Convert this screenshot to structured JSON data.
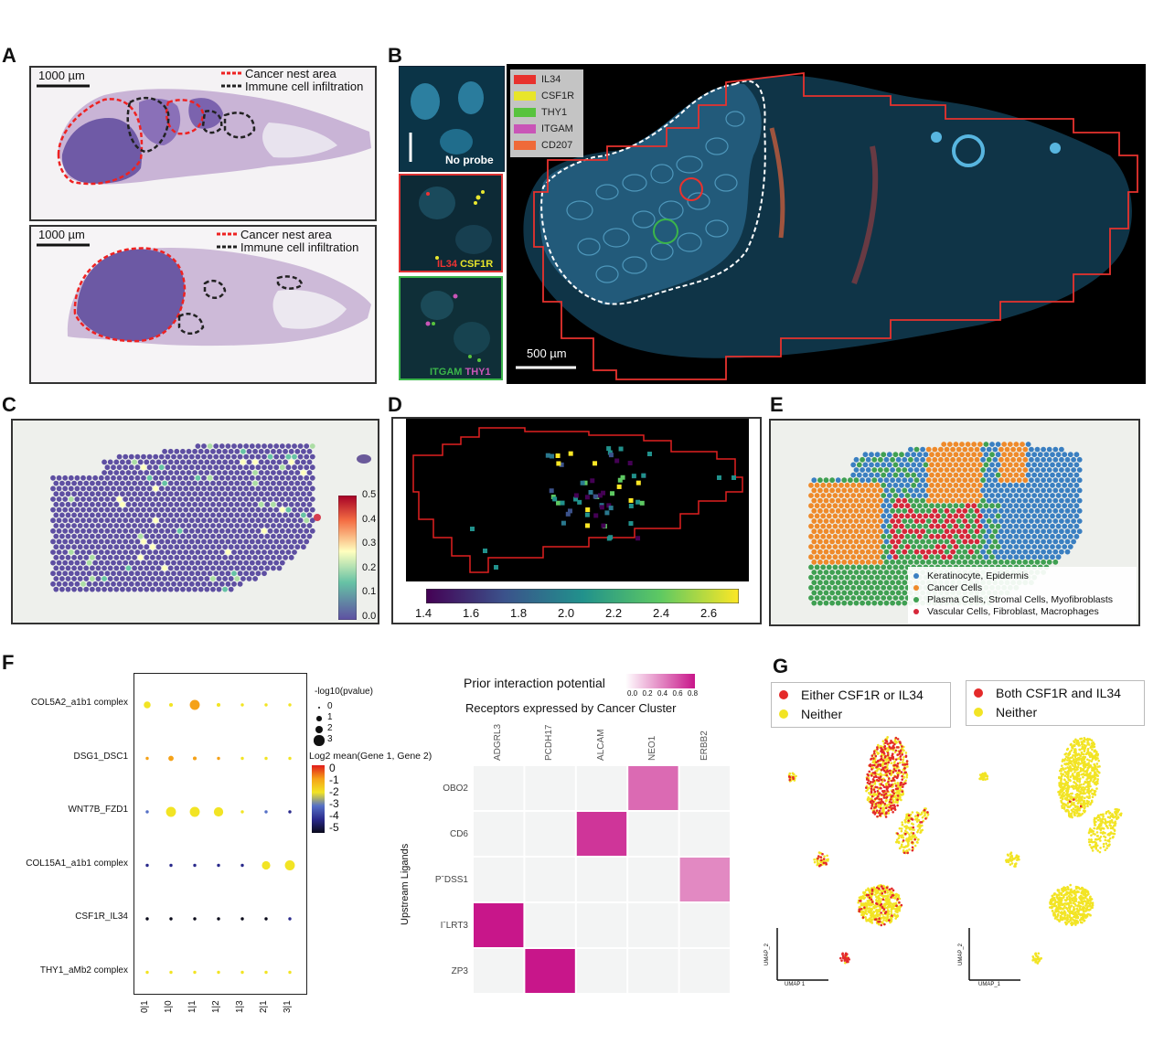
{
  "panels": {
    "A": "A",
    "B": "B",
    "C": "C",
    "D": "D",
    "E": "E",
    "F": "F",
    "G": "G"
  },
  "panelA": {
    "scale_top": "1000 µm",
    "scale_bottom": "1000 µm",
    "legend_cancer": "Cancer nest area",
    "legend_immune": "Immune cell infiltration"
  },
  "panelB": {
    "inset_noprobe": "No probe",
    "inset2_a": "IL34",
    "inset2_b": "CSF1R",
    "inset3_a": "ITGAM",
    "inset3_b": "THY1",
    "scale": "500 µm",
    "legend": [
      {
        "label": "IL34",
        "color": "#e8322e"
      },
      {
        "label": "CSF1R",
        "color": "#e8e52a"
      },
      {
        "label": "THY1",
        "color": "#58c33e"
      },
      {
        "label": "ITGAM",
        "color": "#c955b7"
      },
      {
        "label": "CD207",
        "color": "#ef6a39"
      }
    ]
  },
  "panelC": {
    "colorbar_ticks": [
      "0.5",
      "0.4",
      "0.3",
      "0.2",
      "0.1",
      "0.0"
    ]
  },
  "panelD": {
    "colorbar_ticks": [
      "1.4",
      "1.6",
      "1.8",
      "2.0",
      "2.2",
      "2.4",
      "2.6"
    ]
  },
  "panelE": {
    "legend": [
      {
        "label": "Keratinocyte, Epidermis",
        "color": "#3a7fc1"
      },
      {
        "label": "Cancer Cells",
        "color": "#ef8a2a"
      },
      {
        "label": "Plasma Cells, Stromal Cells, Myofibroblasts",
        "color": "#3fa052"
      },
      {
        "label": "Vascular Cells, Fibroblast, Macrophages",
        "color": "#d6273a"
      }
    ]
  },
  "panelF": {
    "rows": [
      "COL5A2_a1b1 complex",
      "DSG1_DSC1",
      "WNT7B_FZD1",
      "COL15A1_a1b1 complex",
      "CSF1R_IL34",
      "THY1_aMb2 complex"
    ],
    "cols": [
      "0|1",
      "1|0",
      "1|1",
      "1|2",
      "1|3",
      "2|1",
      "3|1"
    ],
    "size_legend_title": "-log10(pvalue)",
    "size_legend": [
      "0",
      "1",
      "2",
      "3"
    ],
    "color_legend_title": "Log2 mean(Gene 1, Gene 2)",
    "color_legend": [
      "0",
      "-1",
      "-2",
      "-3",
      "-4",
      "-5"
    ]
  },
  "heatmap": {
    "title": "Prior interaction potential",
    "scale_ticks": [
      "0.0",
      "0.2",
      "0.4",
      "0.6",
      "0.8"
    ],
    "subtitle": "Receptors expressed by Cancer Cluster",
    "receptors": [
      "ADGRL3",
      "PCDH17",
      "ALCAM",
      "NEO1",
      "ERBB2"
    ],
    "ligands": [
      "OBO2",
      "CD6",
      "PˉDSS1",
      "IˉLRT3",
      "ZP3"
    ],
    "ylabel": "Upstream Ligands"
  },
  "panelG": {
    "legend_left": [
      {
        "label": "Either CSF1R or IL34",
        "color": "#e42a2a"
      },
      {
        "label": "Neither",
        "color": "#f2e424"
      }
    ],
    "legend_right": [
      {
        "label": "Both CSF1R and IL34",
        "color": "#e42a2a"
      },
      {
        "label": "Neither",
        "color": "#f2e424"
      }
    ],
    "axis_x": "UMAP 1",
    "axis_y": "UMAP_2",
    "axis_x2": "UMAP_1",
    "axis_y2": "UMAP_2"
  },
  "chart_data": [
    {
      "type": "scatter",
      "title": "",
      "xlabel": "",
      "ylabel": "",
      "x": [
        "0|1",
        "1|0",
        "1|1",
        "1|2",
        "1|3",
        "2|1",
        "3|1"
      ],
      "series": [
        {
          "name": "COL5A2_a1b1 complex",
          "size": [
            1.5,
            0.5,
            2.5,
            0.5,
            0.3,
            0.3,
            0.3
          ],
          "log2mean": [
            -1.8,
            -1.6,
            -0.8,
            -1.7,
            -1.6,
            -1.7,
            -1.6
          ]
        },
        {
          "name": "DSG1_DSC1",
          "size": [
            0.3,
            1.0,
            0.5,
            0.3,
            0.3,
            0.3,
            0.3
          ],
          "log2mean": [
            -0.5,
            -1.2,
            -1.2,
            -1.3,
            -1.5,
            -1.8,
            -1.8
          ]
        },
        {
          "name": "WNT7B_FZD1",
          "size": [
            0.3,
            2.5,
            2.5,
            2.3,
            0.3,
            0.3,
            0.3
          ],
          "log2mean": [
            -3.0,
            -2.0,
            -2.0,
            -2.0,
            -2.2,
            -3.2,
            -3.5
          ]
        },
        {
          "name": "COL15A1_a1b1 complex",
          "size": [
            0.3,
            0.3,
            0.3,
            0.3,
            0.3,
            2.0,
            2.5
          ],
          "log2mean": [
            -3.5,
            -3.5,
            -3.5,
            -3.5,
            -3.5,
            -2.2,
            -2.0
          ]
        },
        {
          "name": "CSF1R_IL34",
          "size": [
            0.3,
            0.3,
            0.3,
            0.3,
            0.3,
            0.3,
            0.3
          ],
          "log2mean": [
            -4.5,
            -4.5,
            -5.0,
            -4.5,
            -4.5,
            -4.5,
            -3.8
          ]
        },
        {
          "name": "THY1_aMb2 complex",
          "size": [
            0.3,
            0.3,
            0.3,
            0.3,
            0.3,
            0.3,
            0.3
          ],
          "log2mean": [
            -2.0,
            -2.0,
            -2.0,
            -2.0,
            -2.0,
            -1.5,
            -1.5
          ]
        }
      ]
    },
    {
      "type": "heatmap",
      "title": "Prior interaction potential",
      "x": [
        "ADGRL3",
        "PCDH17",
        "ALCAM",
        "NEO1",
        "ERBB2"
      ],
      "y": [
        "OBO2",
        "CD6",
        "PˉDSS1",
        "IˉLRT3",
        "ZP3"
      ],
      "values": [
        [
          0,
          0,
          0,
          0.45,
          0
        ],
        [
          0,
          0,
          0.7,
          0,
          0
        ],
        [
          0,
          0,
          0,
          0,
          0.3
        ],
        [
          0.85,
          0,
          0,
          0,
          0
        ],
        [
          0,
          0.85,
          0,
          0,
          0
        ]
      ],
      "ylim": [
        0,
        0.8
      ]
    }
  ]
}
